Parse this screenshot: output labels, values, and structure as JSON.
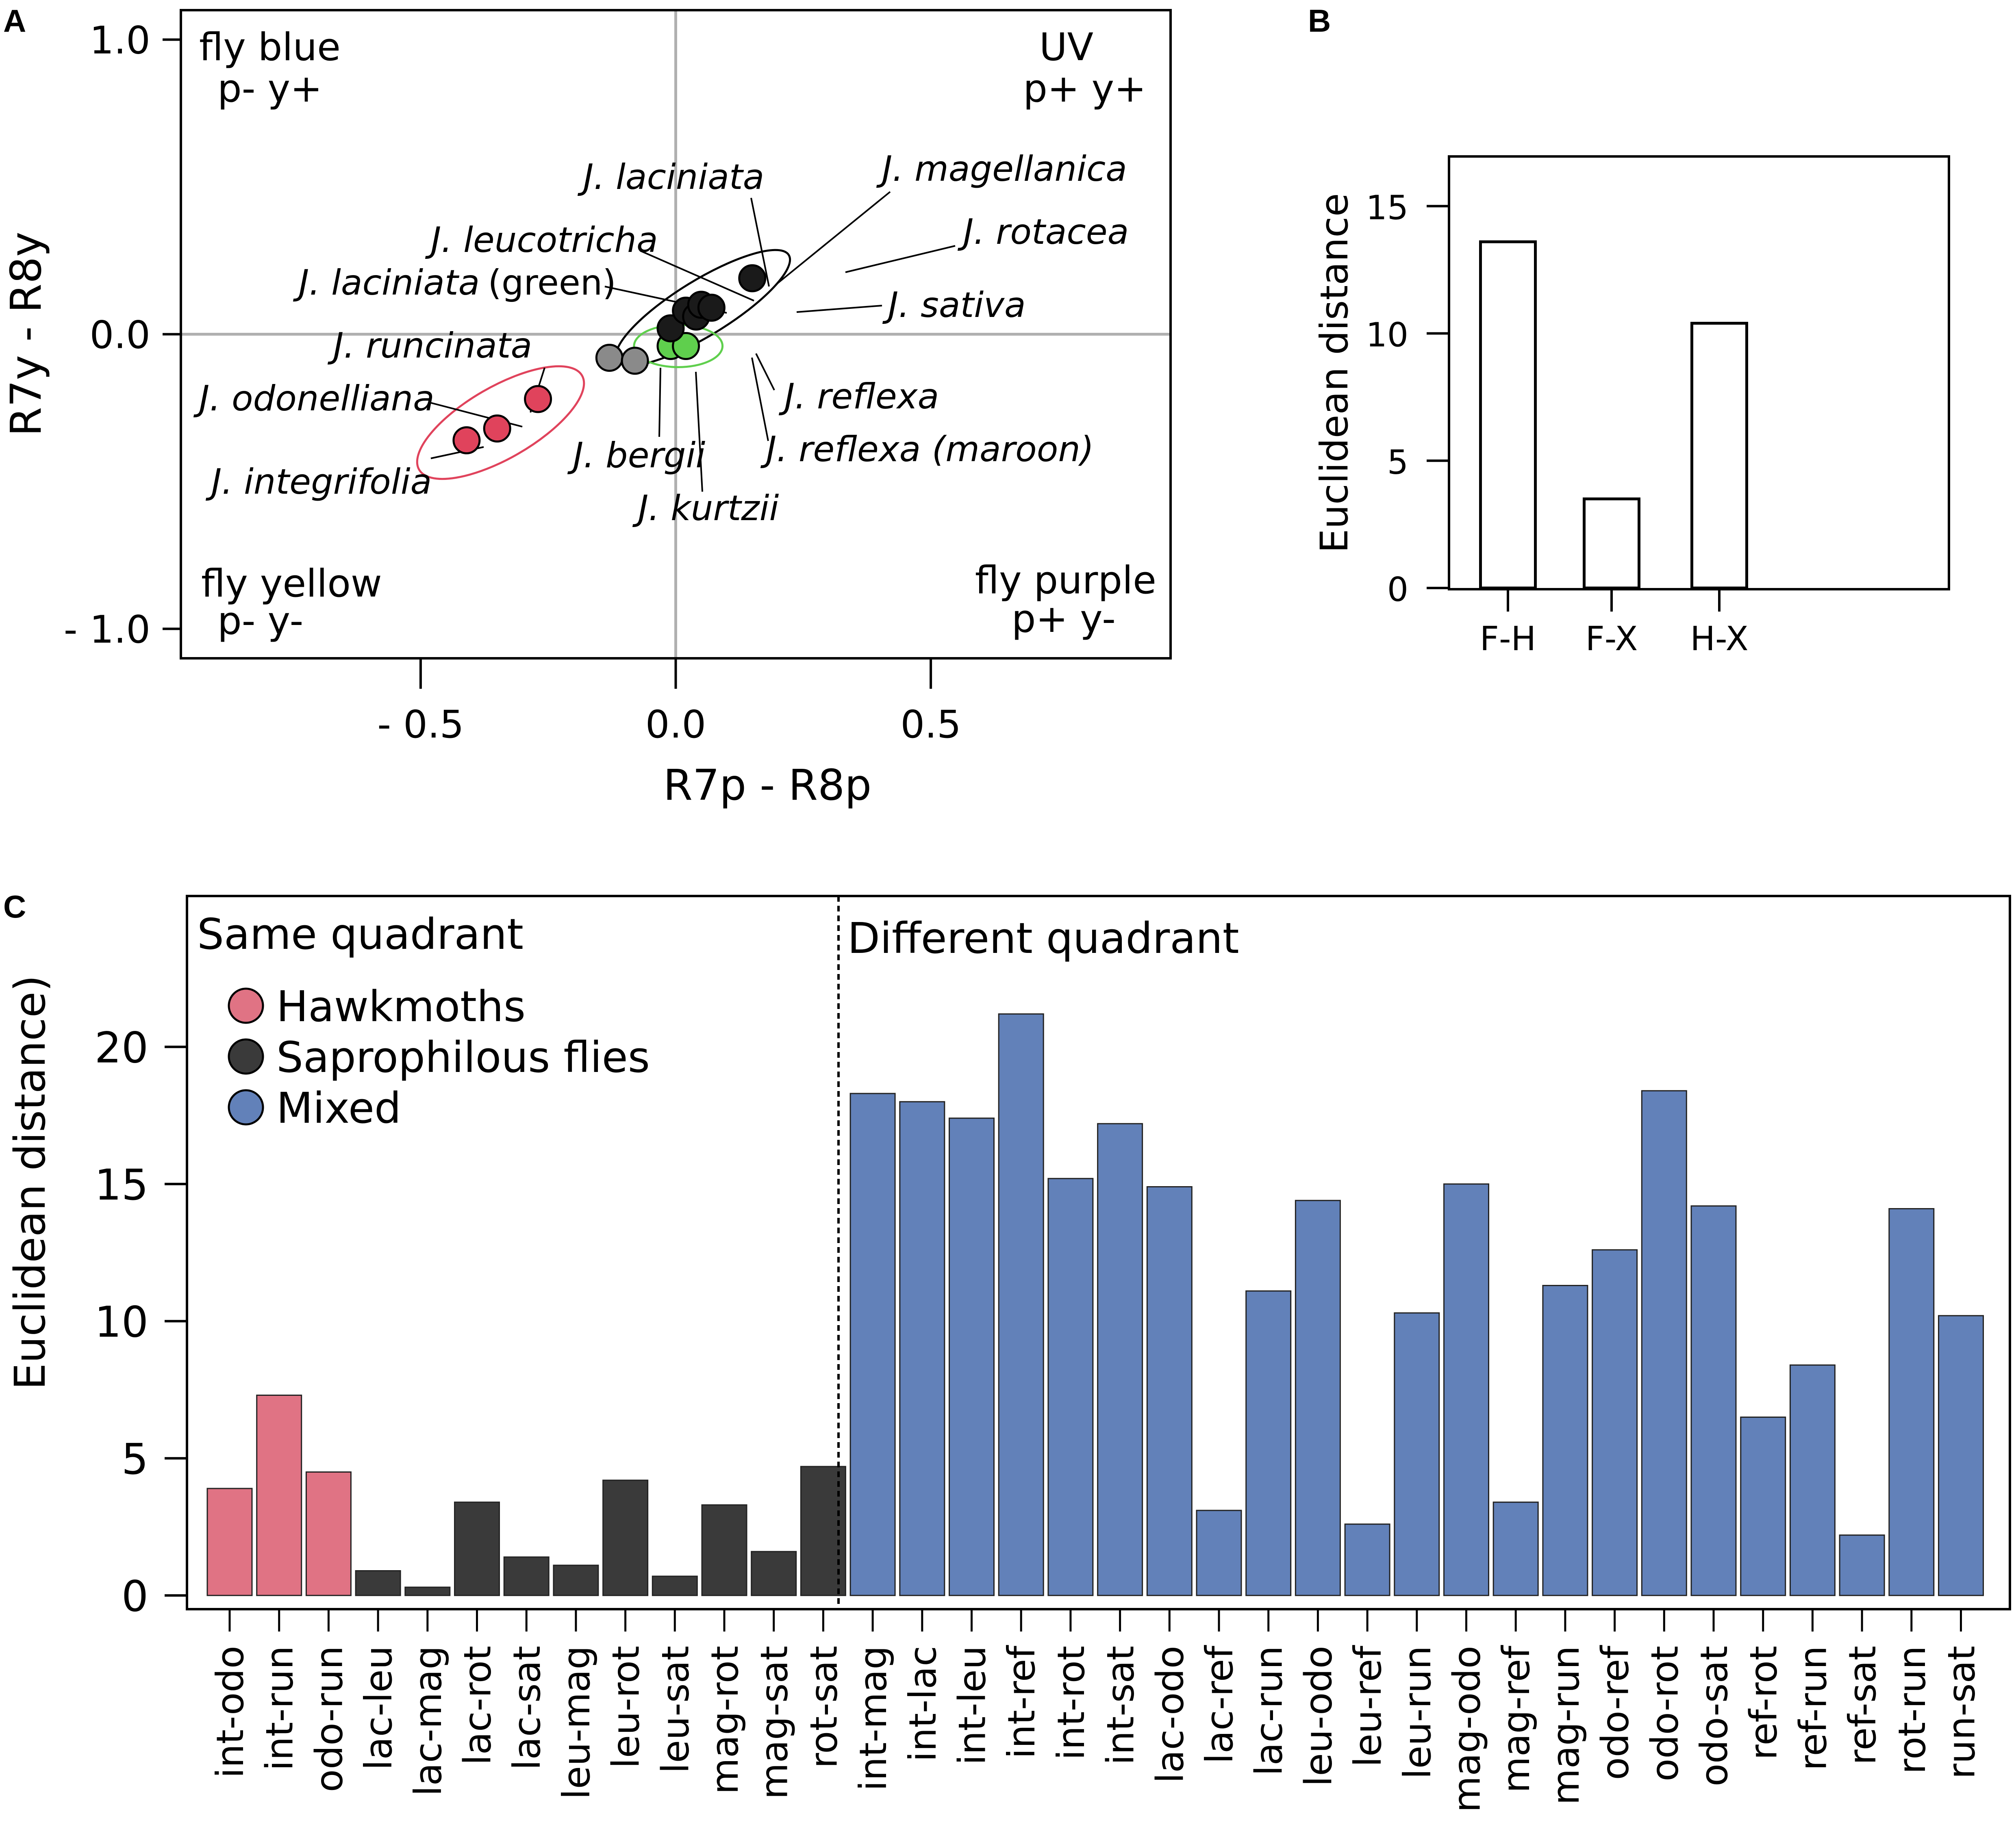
{
  "panel_labels": {
    "a": "A",
    "b": "B",
    "c": "C"
  },
  "colors": {
    "hawkmoth": "#e07384",
    "hawkmoth_point": "#e0435c",
    "fly": "#3a3a3a",
    "fly_point": "#1a1a1a",
    "mixed": "#6281b9",
    "green": "#5fcf4d",
    "grey": "#8a8a8a",
    "ellipse_red": "#e0435c",
    "ellipse_green": "#5fcf4d"
  },
  "chart_data": [
    {
      "id": "A",
      "type": "scatter",
      "xlabel": "R7p - R8p",
      "ylabel": "R7y - R8y",
      "xlim": [
        -0.97,
        0.97
      ],
      "ylim": [
        -1.1,
        1.1
      ],
      "x_ticks": [
        {
          "value": -0.5,
          "label": "- 0.5"
        },
        {
          "value": 0.0,
          "label": "0.0"
        },
        {
          "value": 0.5,
          "label": "0.5"
        }
      ],
      "y_ticks": [
        {
          "value": 1.0,
          "label": "1.0"
        },
        {
          "value": 0.0,
          "label": "0.0"
        },
        {
          "value": -1.0,
          "label": "- 1.0"
        }
      ],
      "quadrants": {
        "top_left": {
          "name": "fly blue",
          "code": "p-  y+"
        },
        "top_right": {
          "name": "UV",
          "code": "p+  y+"
        },
        "bottom_left": {
          "name": "fly yellow",
          "code": "p-  y-"
        },
        "bottom_right": {
          "name": "fly purple",
          "code": "p+  y-"
        }
      },
      "points": [
        {
          "species": "J. odonelliana",
          "x": -0.35,
          "y": -0.32,
          "group": "hawkmoth"
        },
        {
          "species": "J. runcinata",
          "x": -0.27,
          "y": -0.22,
          "group": "hawkmoth"
        },
        {
          "species": "J. integrifolia",
          "x": -0.41,
          "y": -0.36,
          "group": "hawkmoth"
        },
        {
          "species": "J. bergii",
          "x": -0.13,
          "y": -0.08,
          "group": "other"
        },
        {
          "species": "J. kurtzii",
          "x": -0.08,
          "y": -0.09,
          "group": "other"
        },
        {
          "species": "J. reflexa (maroon)",
          "x": -0.01,
          "y": -0.04,
          "group": "green"
        },
        {
          "species": "J. reflexa",
          "x": 0.02,
          "y": -0.04,
          "group": "green"
        },
        {
          "species": "J. leucotricha",
          "x": -0.01,
          "y": 0.02,
          "group": "fly"
        },
        {
          "species": "J. laciniata (green)",
          "x": 0.02,
          "y": 0.08,
          "group": "fly"
        },
        {
          "species": "J. sativa",
          "x": 0.04,
          "y": 0.06,
          "group": "fly"
        },
        {
          "species": "J. laciniata",
          "x": 0.05,
          "y": 0.1,
          "group": "fly"
        },
        {
          "species": "J. magellanica",
          "x": 0.07,
          "y": 0.09,
          "group": "fly"
        },
        {
          "species": "J. rotacea",
          "x": 0.15,
          "y": 0.19,
          "group": "fly"
        }
      ],
      "labels": {
        "laciniata": "J. laciniata",
        "magellanica": "J. magellanica",
        "leucotricha": "J. leucotricha",
        "rotacea": "J. rotacea",
        "laciniata_green_sp": "J. laciniata",
        "laciniata_green_note": "(green)",
        "sativa": "J. sativa",
        "runcinata": "J. runcinata",
        "odonelliana": "J. odonelliana",
        "reflexa": "J. reflexa",
        "integrifolia": "J. integrifolia",
        "bergii": "J. bergii",
        "reflexa_maroon": "J. reflexa (maroon)",
        "kurtzii": "J. kurtzii"
      }
    },
    {
      "id": "B",
      "type": "bar",
      "ylabel": "Euclidean distance",
      "categories": [
        "F-H",
        "F-X",
        "H-X"
      ],
      "values": [
        13.6,
        3.5,
        10.4
      ],
      "ylim": [
        0,
        17
      ],
      "y_ticks": [
        0,
        5,
        10,
        15
      ]
    },
    {
      "id": "C",
      "type": "bar",
      "ylabel": "Euclidean distance)",
      "ylim": [
        -0.5,
        25.5
      ],
      "y_ticks": [
        0,
        5,
        10,
        15,
        20
      ],
      "section_labels": {
        "same": "Same quadrant",
        "different": "Different quadrant"
      },
      "legend": [
        {
          "label": "Hawkmoths",
          "group": "hawkmoth"
        },
        {
          "label": "Saprophilous flies",
          "group": "fly"
        },
        {
          "label": "Mixed",
          "group": "mixed"
        }
      ],
      "categories": [
        "int-odo",
        "int-run",
        "odo-run",
        "lac-leu",
        "lac-mag",
        "lac-rot",
        "lac-sat",
        "leu-mag",
        "leu-rot",
        "leu-sat",
        "mag-rot",
        "mag-sat",
        "rot-sat",
        "int-mag",
        "int-lac",
        "int-leu",
        "int-ref",
        "int-rot",
        "int-sat",
        "lac-odo",
        "lac-ref",
        "lac-run",
        "leu-odo",
        "leu-ref",
        "leu-run",
        "mag-odo",
        "mag-ref",
        "mag-run",
        "odo-ref",
        "odo-rot",
        "odo-sat",
        "ref-rot",
        "ref-run",
        "ref-sat",
        "rot-run",
        "run-sat"
      ],
      "values": [
        3.9,
        7.3,
        4.5,
        0.9,
        0.3,
        3.4,
        1.4,
        1.1,
        4.2,
        0.7,
        3.3,
        1.6,
        4.7,
        18.3,
        18.0,
        17.4,
        21.2,
        15.2,
        17.2,
        14.9,
        3.1,
        11.1,
        14.4,
        2.6,
        10.3,
        15.0,
        3.4,
        11.3,
        12.6,
        18.4,
        14.2,
        6.5,
        8.4,
        2.2,
        14.1,
        10.2
      ],
      "groups": [
        "hawkmoth",
        "hawkmoth",
        "hawkmoth",
        "fly",
        "fly",
        "fly",
        "fly",
        "fly",
        "fly",
        "fly",
        "fly",
        "fly",
        "fly",
        "mixed",
        "mixed",
        "mixed",
        "mixed",
        "mixed",
        "mixed",
        "mixed",
        "mixed",
        "mixed",
        "mixed",
        "mixed",
        "mixed",
        "mixed",
        "mixed",
        "mixed",
        "mixed",
        "mixed",
        "mixed",
        "mixed",
        "mixed",
        "mixed",
        "mixed",
        "mixed"
      ]
    }
  ]
}
